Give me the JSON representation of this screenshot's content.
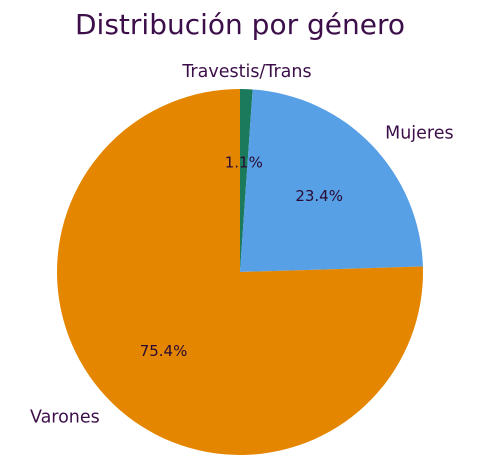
{
  "chart_data": {
    "type": "pie",
    "title": "Distribución por género",
    "slices": [
      {
        "label": "Travestis/Trans",
        "value": 1.1,
        "value_label": "1.1%",
        "color": "#1b7a5c"
      },
      {
        "label": "Mujeres",
        "value": 23.4,
        "value_label": "23.4%",
        "color": "#58a0e6"
      },
      {
        "label": "Varones",
        "value": 75.4,
        "value_label": "75.4%",
        "color": "#e48600"
      }
    ],
    "start_angle_deg": 90,
    "direction": "clockwise"
  }
}
